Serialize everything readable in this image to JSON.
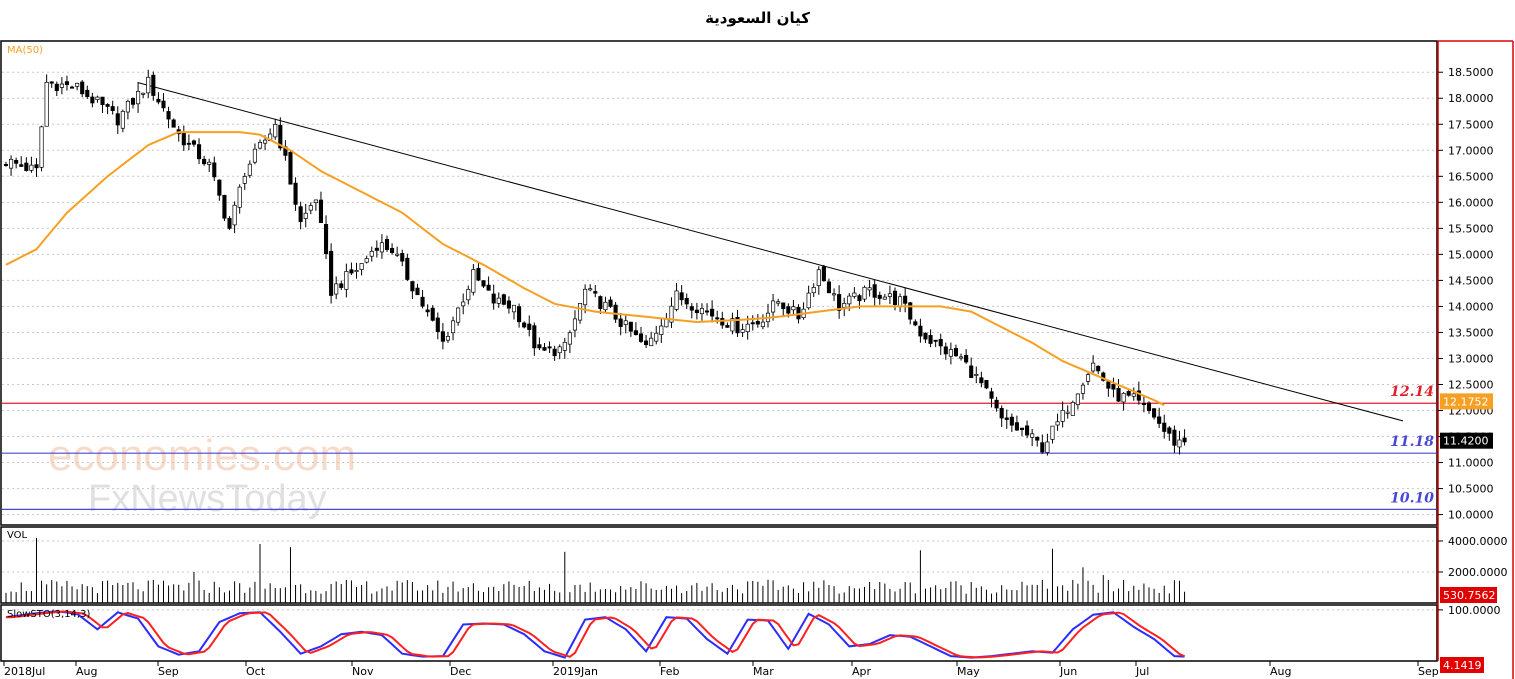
{
  "title": "كيان السعودية",
  "watermark": {
    "line1": "economies.com",
    "line2": "FxNewsToday"
  },
  "colors": {
    "bull": "#ffffff",
    "bear": "#000000",
    "ma": "#f5a023",
    "trend": "#000000",
    "resistance": "#e0202a",
    "support": "#4848d8",
    "stoch_k": "#2c2cff",
    "stoch_d": "#ff2020",
    "grid": "#c8c8c8",
    "frame": "#000000",
    "right_edge": "#e00000"
  },
  "chart_data": [
    {
      "type": "candlestick",
      "panel": "price",
      "indicator_label": "MA(50)",
      "ylim": [
        9.8,
        19.1
      ],
      "y_ticks": [
        "18.5000",
        "18.0000",
        "17.5000",
        "17.0000",
        "16.5000",
        "16.0000",
        "15.5000",
        "15.0000",
        "14.5000",
        "14.0000",
        "13.5000",
        "13.0000",
        "12.5000",
        "12.0000",
        "11.5000",
        "11.0000",
        "10.5000",
        "10.0000"
      ],
      "x_labels": [
        "2018Jul",
        "Aug",
        "Sep",
        "Oct",
        "Nov",
        "Dec",
        "2019Jan",
        "Feb",
        "Mar",
        "Apr",
        "May",
        "Jun",
        "Jul",
        "Aug",
        "Sep"
      ],
      "close_keypoints": [
        [
          0,
          16.8
        ],
        [
          6,
          16.6
        ],
        [
          8,
          18.3
        ],
        [
          14,
          18.2
        ],
        [
          22,
          17.6
        ],
        [
          28,
          18.3
        ],
        [
          34,
          17.3
        ],
        [
          40,
          16.7
        ],
        [
          44,
          15.5
        ],
        [
          47,
          16.6
        ],
        [
          51,
          17.2
        ],
        [
          53,
          17.5
        ],
        [
          55,
          16.8
        ],
        [
          58,
          15.6
        ],
        [
          61,
          16.1
        ],
        [
          64,
          14.3
        ],
        [
          70,
          14.8
        ],
        [
          73,
          15.2
        ],
        [
          76,
          15.1
        ],
        [
          80,
          14.4
        ],
        [
          86,
          13.3
        ],
        [
          92,
          14.6
        ],
        [
          96,
          14.1
        ],
        [
          100,
          14.0
        ],
        [
          105,
          13.1
        ],
        [
          110,
          13.2
        ],
        [
          114,
          14.3
        ],
        [
          118,
          14.0
        ],
        [
          126,
          13.2
        ],
        [
          132,
          14.2
        ],
        [
          138,
          13.9
        ],
        [
          144,
          13.6
        ],
        [
          148,
          13.7
        ],
        [
          152,
          14.1
        ],
        [
          156,
          13.8
        ],
        [
          160,
          14.7
        ],
        [
          164,
          14.0
        ],
        [
          170,
          14.3
        ],
        [
          176,
          14.1
        ],
        [
          180,
          13.5
        ],
        [
          184,
          13.2
        ],
        [
          188,
          13.0
        ],
        [
          192,
          12.5
        ],
        [
          196,
          11.8
        ],
        [
          200,
          11.6
        ],
        [
          204,
          11.3
        ],
        [
          208,
          11.9
        ],
        [
          212,
          12.6
        ],
        [
          214,
          12.9
        ],
        [
          218,
          12.3
        ],
        [
          222,
          12.2
        ],
        [
          226,
          11.9
        ],
        [
          228,
          11.6
        ],
        [
          230,
          11.4
        ],
        [
          232,
          11.42
        ]
      ],
      "ma50_keypoints": [
        [
          0,
          14.8
        ],
        [
          6,
          15.1
        ],
        [
          12,
          15.8
        ],
        [
          20,
          16.5
        ],
        [
          28,
          17.1
        ],
        [
          34,
          17.35
        ],
        [
          40,
          17.35
        ],
        [
          46,
          17.35
        ],
        [
          50,
          17.3
        ],
        [
          56,
          17.0
        ],
        [
          62,
          16.6
        ],
        [
          70,
          16.2
        ],
        [
          78,
          15.8
        ],
        [
          86,
          15.2
        ],
        [
          94,
          14.8
        ],
        [
          102,
          14.35
        ],
        [
          108,
          14.05
        ],
        [
          116,
          13.9
        ],
        [
          126,
          13.8
        ],
        [
          136,
          13.7
        ],
        [
          146,
          13.75
        ],
        [
          152,
          13.8
        ],
        [
          160,
          13.9
        ],
        [
          168,
          14.0
        ],
        [
          176,
          14.0
        ],
        [
          184,
          14.0
        ],
        [
          190,
          13.9
        ],
        [
          196,
          13.6
        ],
        [
          202,
          13.3
        ],
        [
          208,
          12.95
        ],
        [
          214,
          12.7
        ],
        [
          220,
          12.45
        ],
        [
          226,
          12.2
        ],
        [
          228,
          12.1
        ]
      ],
      "trendline": {
        "start": [
          26,
          18.3
        ],
        "end": [
          275,
          11.8
        ]
      },
      "levels": [
        {
          "label": "12.14",
          "value": 12.14,
          "color": "#e0202a"
        },
        {
          "label": "11.18",
          "value": 11.18,
          "color": "#4848d8"
        },
        {
          "label": "10.10",
          "value": 10.1,
          "color": "#4848d8"
        }
      ],
      "price_tags": [
        {
          "label": "12.1752",
          "value": 12.1752,
          "bg": "#f5a023",
          "fg": "#ffffff"
        },
        {
          "label": "11.4200",
          "value": 11.42,
          "bg": "#000000",
          "fg": "#ffffff"
        }
      ]
    },
    {
      "type": "bar",
      "panel": "volume",
      "label": "VOL",
      "ylim": [
        0,
        4900
      ],
      "y_ticks": [
        "4000.0000",
        "2000.0000"
      ],
      "last_value": "530.7562",
      "spikes": [
        [
          6,
          4200
        ],
        [
          37,
          2000
        ],
        [
          50,
          3800
        ],
        [
          56,
          3600
        ],
        [
          110,
          3300
        ],
        [
          180,
          3400
        ],
        [
          206,
          3500
        ],
        [
          212,
          2300
        ],
        [
          216,
          1800
        ]
      ]
    },
    {
      "type": "line",
      "panel": "stochastic",
      "label": "SlowSTO(3,14,3)",
      "ylim": [
        -5,
        110
      ],
      "y_ticks": [
        "100.0000"
      ],
      "last_value": "4.1419",
      "k_keypoints": [
        [
          0,
          85
        ],
        [
          6,
          93
        ],
        [
          10,
          97
        ],
        [
          14,
          92
        ],
        [
          18,
          60
        ],
        [
          22,
          95
        ],
        [
          26,
          82
        ],
        [
          30,
          25
        ],
        [
          34,
          8
        ],
        [
          38,
          15
        ],
        [
          42,
          75
        ],
        [
          46,
          93
        ],
        [
          50,
          95
        ],
        [
          54,
          55
        ],
        [
          58,
          10
        ],
        [
          62,
          25
        ],
        [
          66,
          50
        ],
        [
          70,
          55
        ],
        [
          74,
          48
        ],
        [
          78,
          10
        ],
        [
          82,
          4
        ],
        [
          86,
          5
        ],
        [
          90,
          70
        ],
        [
          94,
          72
        ],
        [
          98,
          70
        ],
        [
          102,
          50
        ],
        [
          106,
          15
        ],
        [
          110,
          2
        ],
        [
          114,
          80
        ],
        [
          118,
          85
        ],
        [
          122,
          60
        ],
        [
          126,
          15
        ],
        [
          130,
          85
        ],
        [
          134,
          82
        ],
        [
          138,
          40
        ],
        [
          142,
          10
        ],
        [
          146,
          80
        ],
        [
          150,
          78
        ],
        [
          154,
          20
        ],
        [
          158,
          92
        ],
        [
          162,
          70
        ],
        [
          166,
          25
        ],
        [
          170,
          30
        ],
        [
          174,
          48
        ],
        [
          178,
          45
        ],
        [
          182,
          25
        ],
        [
          186,
          5
        ],
        [
          190,
          2
        ],
        [
          194,
          5
        ],
        [
          198,
          10
        ],
        [
          202,
          15
        ],
        [
          206,
          12
        ],
        [
          210,
          60
        ],
        [
          214,
          90
        ],
        [
          218,
          95
        ],
        [
          222,
          65
        ],
        [
          226,
          40
        ],
        [
          230,
          5
        ],
        [
          232,
          4
        ]
      ]
    }
  ]
}
